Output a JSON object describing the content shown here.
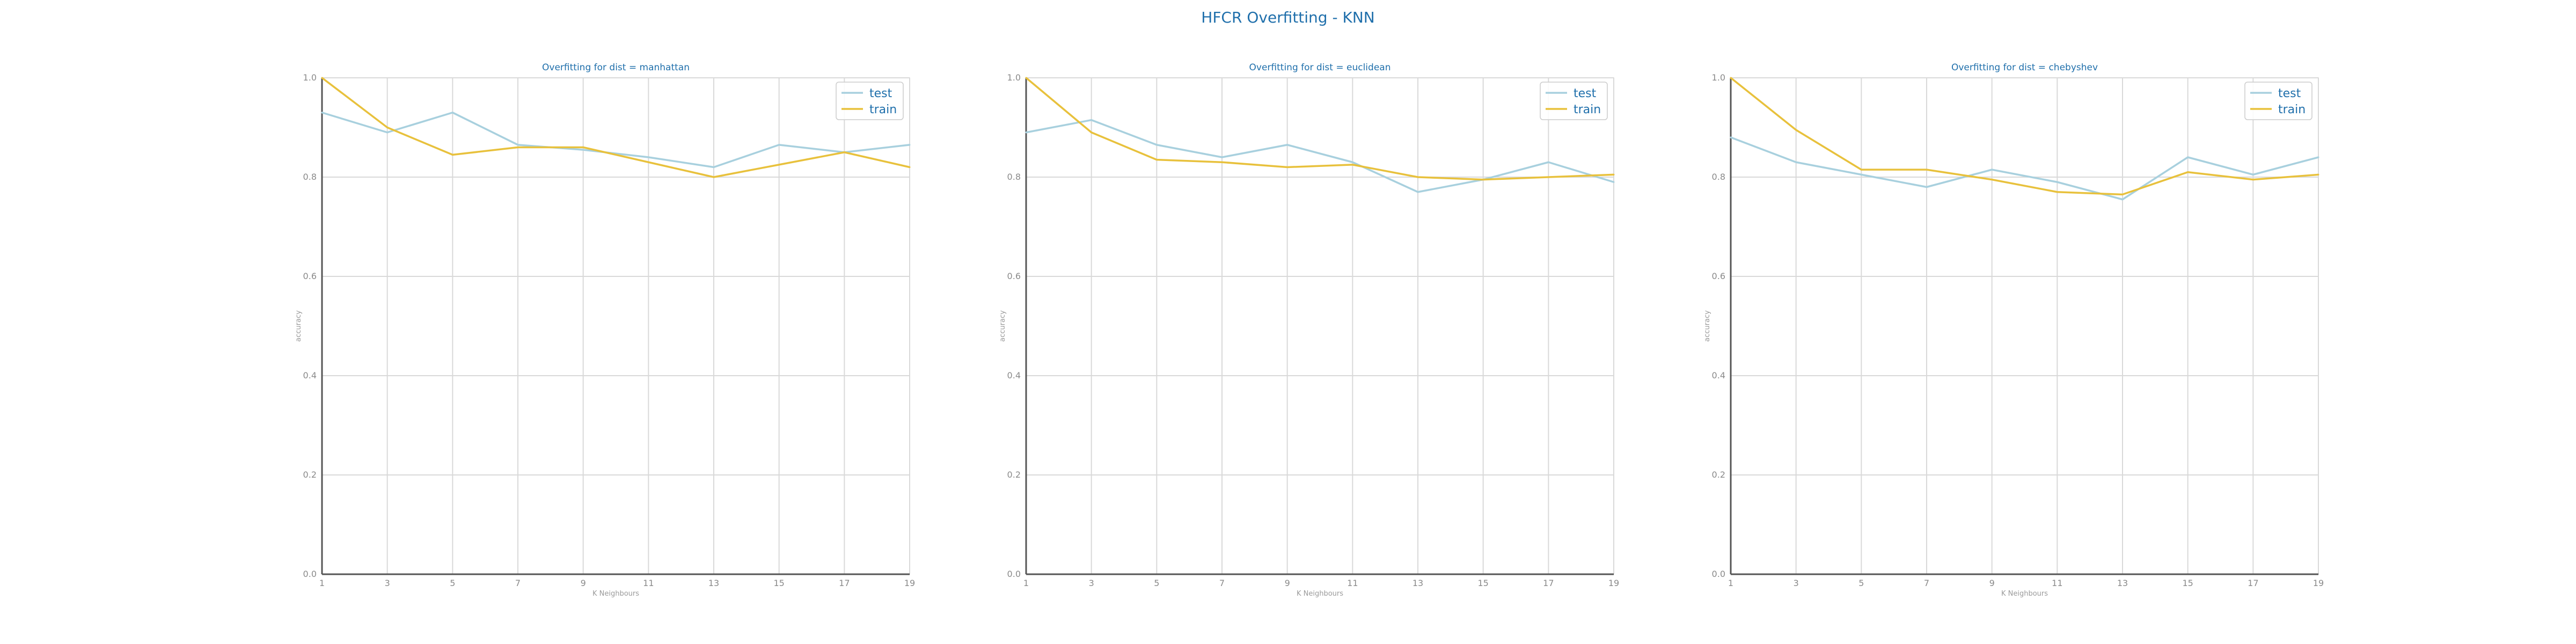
{
  "figure_title": "HFCR Overfitting - KNN",
  "colors": {
    "test": "#a8d0de",
    "train": "#e8c13c",
    "title": "#1f6fab",
    "grid": "#d9d9d9",
    "axis": "#555555"
  },
  "chart_data": [
    {
      "type": "line",
      "title": "Overfitting for dist = manhattan",
      "xlabel": "K Neighbours",
      "ylabel": "accuracy",
      "x": [
        1,
        3,
        5,
        7,
        9,
        11,
        13,
        15,
        17,
        19
      ],
      "ylim": [
        0.0,
        1.0
      ],
      "yticks": [
        "0.0",
        "0.2",
        "0.4",
        "0.6",
        "0.8",
        "1.0"
      ],
      "xticks": [
        "1",
        "3",
        "5",
        "7",
        "9",
        "11",
        "13",
        "15",
        "17",
        "19"
      ],
      "grid": true,
      "legend_position": "top-right",
      "series": [
        {
          "name": "test",
          "values": [
            0.93,
            0.89,
            0.93,
            0.865,
            0.855,
            0.84,
            0.82,
            0.865,
            0.85,
            0.865
          ]
        },
        {
          "name": "train",
          "values": [
            1.0,
            0.9,
            0.845,
            0.86,
            0.86,
            0.83,
            0.8,
            0.825,
            0.85,
            0.82
          ]
        }
      ]
    },
    {
      "type": "line",
      "title": "Overfitting for dist = euclidean",
      "xlabel": "K Neighbours",
      "ylabel": "accuracy",
      "x": [
        1,
        3,
        5,
        7,
        9,
        11,
        13,
        15,
        17,
        19
      ],
      "ylim": [
        0.0,
        1.0
      ],
      "yticks": [
        "0.0",
        "0.2",
        "0.4",
        "0.6",
        "0.8",
        "1.0"
      ],
      "xticks": [
        "1",
        "3",
        "5",
        "7",
        "9",
        "11",
        "13",
        "15",
        "17",
        "19"
      ],
      "grid": true,
      "legend_position": "top-right",
      "series": [
        {
          "name": "test",
          "values": [
            0.89,
            0.915,
            0.865,
            0.84,
            0.865,
            0.83,
            0.77,
            0.795,
            0.83,
            0.79
          ]
        },
        {
          "name": "train",
          "values": [
            1.0,
            0.89,
            0.835,
            0.83,
            0.82,
            0.825,
            0.8,
            0.795,
            0.8,
            0.805
          ]
        }
      ]
    },
    {
      "type": "line",
      "title": "Overfitting for dist = chebyshev",
      "xlabel": "K Neighbours",
      "ylabel": "accuracy",
      "x": [
        1,
        3,
        5,
        7,
        9,
        11,
        13,
        15,
        17,
        19
      ],
      "ylim": [
        0.0,
        1.0
      ],
      "yticks": [
        "0.0",
        "0.2",
        "0.4",
        "0.6",
        "0.8",
        "1.0"
      ],
      "xticks": [
        "1",
        "3",
        "5",
        "7",
        "9",
        "11",
        "13",
        "15",
        "17",
        "19"
      ],
      "grid": true,
      "legend_position": "top-right",
      "series": [
        {
          "name": "test",
          "values": [
            0.88,
            0.83,
            0.805,
            0.78,
            0.815,
            0.79,
            0.755,
            0.84,
            0.805,
            0.84
          ]
        },
        {
          "name": "train",
          "values": [
            1.0,
            0.895,
            0.815,
            0.815,
            0.795,
            0.77,
            0.765,
            0.81,
            0.795,
            0.805
          ]
        }
      ]
    }
  ]
}
